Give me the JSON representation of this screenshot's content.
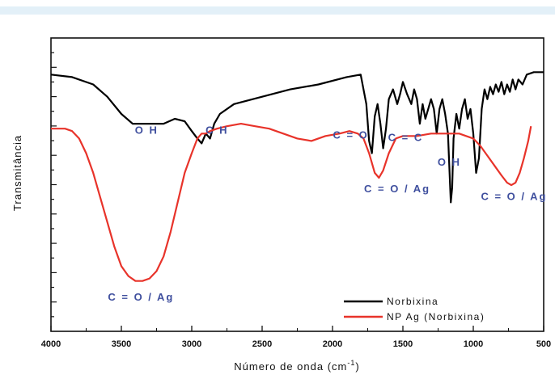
{
  "chart_data": {
    "type": "line",
    "xlabel": "Número de onda (cm",
    "xlabel_sup": "-1",
    "xlabel_close": ")",
    "ylabel": "Transmitância",
    "xlim": [
      4000,
      500
    ],
    "x_ticks": [
      4000,
      3500,
      3000,
      2500,
      2000,
      1500,
      1000,
      500
    ],
    "x_inverted": true,
    "y_ticks_labeled": false,
    "grid": false,
    "legend_position": "bottom-right",
    "series": [
      {
        "name": "Norbixina",
        "color": "#000000",
        "points": [
          [
            4000,
            0.92
          ],
          [
            3850,
            0.91
          ],
          [
            3700,
            0.88
          ],
          [
            3600,
            0.83
          ],
          [
            3500,
            0.76
          ],
          [
            3420,
            0.72
          ],
          [
            3300,
            0.72
          ],
          [
            3200,
            0.72
          ],
          [
            3120,
            0.74
          ],
          [
            3050,
            0.73
          ],
          [
            3000,
            0.69
          ],
          [
            2960,
            0.66
          ],
          [
            2930,
            0.64
          ],
          [
            2900,
            0.68
          ],
          [
            2870,
            0.66
          ],
          [
            2840,
            0.72
          ],
          [
            2800,
            0.76
          ],
          [
            2700,
            0.8
          ],
          [
            2500,
            0.83
          ],
          [
            2300,
            0.86
          ],
          [
            2100,
            0.88
          ],
          [
            1900,
            0.91
          ],
          [
            1800,
            0.92
          ],
          [
            1760,
            0.8
          ],
          [
            1740,
            0.65
          ],
          [
            1720,
            0.6
          ],
          [
            1700,
            0.75
          ],
          [
            1680,
            0.8
          ],
          [
            1660,
            0.72
          ],
          [
            1640,
            0.62
          ],
          [
            1620,
            0.7
          ],
          [
            1600,
            0.82
          ],
          [
            1570,
            0.86
          ],
          [
            1540,
            0.8
          ],
          [
            1520,
            0.84
          ],
          [
            1500,
            0.89
          ],
          [
            1470,
            0.84
          ],
          [
            1440,
            0.8
          ],
          [
            1420,
            0.86
          ],
          [
            1400,
            0.82
          ],
          [
            1380,
            0.72
          ],
          [
            1360,
            0.8
          ],
          [
            1340,
            0.74
          ],
          [
            1300,
            0.82
          ],
          [
            1280,
            0.78
          ],
          [
            1260,
            0.68
          ],
          [
            1240,
            0.78
          ],
          [
            1220,
            0.82
          ],
          [
            1200,
            0.76
          ],
          [
            1180,
            0.68
          ],
          [
            1160,
            0.4
          ],
          [
            1150,
            0.46
          ],
          [
            1140,
            0.66
          ],
          [
            1120,
            0.76
          ],
          [
            1100,
            0.7
          ],
          [
            1080,
            0.78
          ],
          [
            1060,
            0.82
          ],
          [
            1040,
            0.74
          ],
          [
            1020,
            0.78
          ],
          [
            1000,
            0.68
          ],
          [
            980,
            0.52
          ],
          [
            960,
            0.58
          ],
          [
            940,
            0.78
          ],
          [
            920,
            0.86
          ],
          [
            900,
            0.82
          ],
          [
            880,
            0.87
          ],
          [
            860,
            0.84
          ],
          [
            840,
            0.88
          ],
          [
            820,
            0.85
          ],
          [
            800,
            0.89
          ],
          [
            780,
            0.84
          ],
          [
            760,
            0.88
          ],
          [
            740,
            0.85
          ],
          [
            720,
            0.9
          ],
          [
            700,
            0.86
          ],
          [
            680,
            0.9
          ],
          [
            650,
            0.88
          ],
          [
            620,
            0.92
          ],
          [
            570,
            0.93
          ],
          [
            500,
            0.93
          ]
        ]
      },
      {
        "name": "NP Ag (Norbixina)",
        "color": "#e8332a",
        "points": [
          [
            4000,
            0.7
          ],
          [
            3900,
            0.7
          ],
          [
            3850,
            0.69
          ],
          [
            3800,
            0.66
          ],
          [
            3750,
            0.6
          ],
          [
            3700,
            0.52
          ],
          [
            3650,
            0.42
          ],
          [
            3600,
            0.32
          ],
          [
            3550,
            0.22
          ],
          [
            3500,
            0.14
          ],
          [
            3450,
            0.1
          ],
          [
            3400,
            0.08
          ],
          [
            3350,
            0.08
          ],
          [
            3300,
            0.09
          ],
          [
            3250,
            0.12
          ],
          [
            3200,
            0.18
          ],
          [
            3150,
            0.28
          ],
          [
            3100,
            0.4
          ],
          [
            3050,
            0.52
          ],
          [
            3000,
            0.6
          ],
          [
            2960,
            0.66
          ],
          [
            2930,
            0.68
          ],
          [
            2900,
            0.68
          ],
          [
            2870,
            0.69
          ],
          [
            2820,
            0.7
          ],
          [
            2750,
            0.71
          ],
          [
            2650,
            0.72
          ],
          [
            2550,
            0.71
          ],
          [
            2450,
            0.7
          ],
          [
            2350,
            0.68
          ],
          [
            2250,
            0.66
          ],
          [
            2150,
            0.65
          ],
          [
            2050,
            0.67
          ],
          [
            1950,
            0.68
          ],
          [
            1880,
            0.69
          ],
          [
            1820,
            0.68
          ],
          [
            1780,
            0.66
          ],
          [
            1740,
            0.6
          ],
          [
            1700,
            0.52
          ],
          [
            1670,
            0.5
          ],
          [
            1640,
            0.53
          ],
          [
            1600,
            0.6
          ],
          [
            1550,
            0.66
          ],
          [
            1500,
            0.67
          ],
          [
            1400,
            0.67
          ],
          [
            1300,
            0.68
          ],
          [
            1200,
            0.68
          ],
          [
            1100,
            0.68
          ],
          [
            1000,
            0.66
          ],
          [
            950,
            0.63
          ],
          [
            900,
            0.59
          ],
          [
            850,
            0.55
          ],
          [
            800,
            0.51
          ],
          [
            760,
            0.48
          ],
          [
            730,
            0.47
          ],
          [
            700,
            0.48
          ],
          [
            670,
            0.52
          ],
          [
            640,
            0.58
          ],
          [
            610,
            0.65
          ],
          [
            590,
            0.71
          ]
        ]
      }
    ],
    "annotations": [
      {
        "text": "O H",
        "x": 3320,
        "y": 0.68,
        "color": "#3f4f9e"
      },
      {
        "text": "C H",
        "x": 2820,
        "y": 0.68,
        "color": "#3f4f9e"
      },
      {
        "text": "C = O",
        "x": 1870,
        "y": 0.66,
        "color": "#3f4f9e"
      },
      {
        "text": "C = C",
        "x": 1480,
        "y": 0.65,
        "color": "#3f4f9e"
      },
      {
        "text": "O H",
        "x": 1170,
        "y": 0.55,
        "color": "#3f4f9e"
      },
      {
        "text": "C = O / Ag",
        "x": 1540,
        "y": 0.44,
        "color": "#3f4f9e"
      },
      {
        "text": "C = O / Ag",
        "x": 710,
        "y": 0.41,
        "color": "#3f4f9e"
      },
      {
        "text": "C = O / Ag",
        "x": 3360,
        "y": 0.0,
        "color": "#3f4f9e"
      }
    ]
  }
}
